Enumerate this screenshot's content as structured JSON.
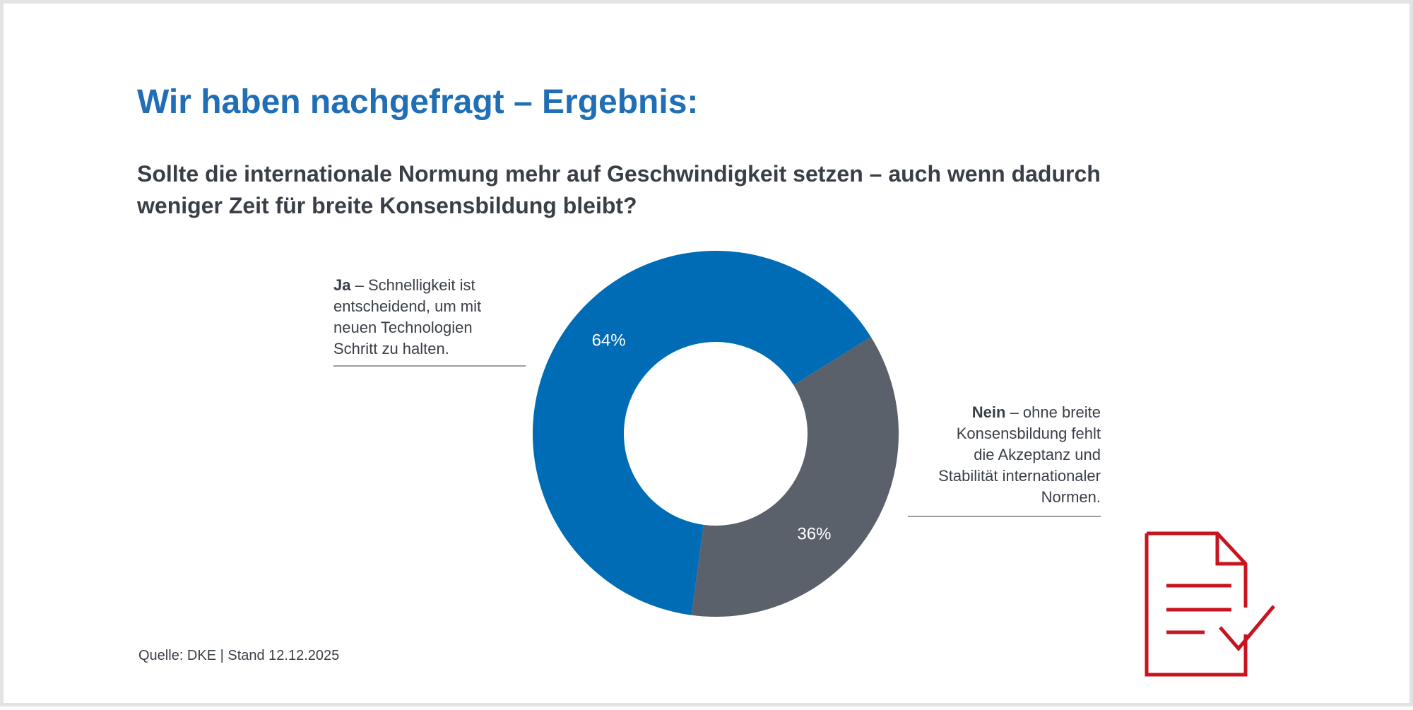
{
  "header": {
    "title": "Wir haben nachgefragt – Ergebnis:",
    "question_line1": "Sollte die internationale Normung mehr auf Geschwindigkeit setzen – auch wenn dadurch",
    "question_line2": "weniger Zeit für breite Konsensbildung bleibt?"
  },
  "labels": {
    "ja": {
      "bold": "Ja",
      "line1_rest": " – Schnelligkeit ist",
      "line2": "entscheidend, um mit",
      "line3": "neuen Technologien",
      "line4": "Schritt zu halten."
    },
    "nein": {
      "bold": "Nein",
      "line1_rest": " – ohne breite",
      "line2": "Konsensbildung fehlt",
      "line3": "die Akzeptanz und",
      "line4": "Stabilität internationaler",
      "line5": "Normen."
    }
  },
  "footer": {
    "source": "Quelle: DKE | Stand 12.12.2025"
  },
  "icons": {
    "document_check": "document-checkmark-icon"
  },
  "colors": {
    "title": "#1f6eb6",
    "ja": "#006cb5",
    "nein": "#5a616b",
    "icon": "#c8141e"
  },
  "chart_data": {
    "type": "pie",
    "subtype": "donut",
    "title": "Sollte die internationale Normung mehr auf Geschwindigkeit setzen – auch wenn dadurch weniger Zeit für breite Konsensbildung bleibt?",
    "slices": [
      {
        "key": "ja",
        "name": "Ja",
        "value": 64,
        "label": "64%",
        "color": "#006cb5"
      },
      {
        "key": "nein",
        "name": "Nein",
        "value": 36,
        "label": "36%",
        "color": "#5a616b"
      }
    ]
  }
}
